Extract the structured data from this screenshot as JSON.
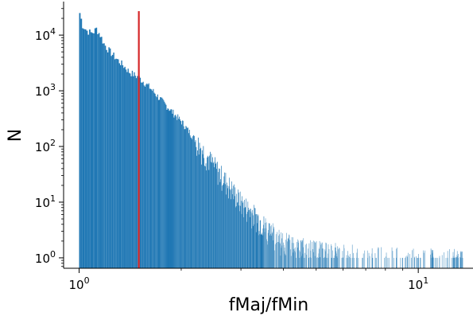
{
  "chart_data": {
    "type": "bar",
    "title": "",
    "xlabel": "fMaj/fMin",
    "ylabel": "N",
    "xscale": "log",
    "yscale": "log",
    "xlim": [
      0.9,
      14.5
    ],
    "ylim": [
      0.65,
      40000
    ],
    "x_ticks": [
      {
        "value": 1,
        "base": "10",
        "exp": "0"
      },
      {
        "value": 10,
        "base": "10",
        "exp": "1"
      }
    ],
    "y_ticks": [
      {
        "value": 1,
        "base": "10",
        "exp": "0"
      },
      {
        "value": 10,
        "base": "10",
        "exp": "1"
      },
      {
        "value": 100,
        "base": "10",
        "exp": "2"
      },
      {
        "value": 1000,
        "base": "10",
        "exp": "3"
      },
      {
        "value": 10000,
        "base": "10",
        "exp": "4"
      }
    ],
    "grid": false,
    "bar_color": "#1f77b4",
    "vline": {
      "x": 1.5,
      "color": "#d62728"
    },
    "series": [
      {
        "bin_start": 1.0,
        "bin_width": 0.01,
        "x": [
          1.0,
          1.02,
          1.05,
          1.08,
          1.1,
          1.12,
          1.15,
          1.18,
          1.2,
          1.25,
          1.3,
          1.35,
          1.4,
          1.5,
          1.6,
          1.7,
          1.8,
          2.0,
          2.2,
          2.5,
          2.8,
          3.0,
          3.2,
          3.5,
          3.8,
          4.0,
          4.5,
          5.0,
          5.5,
          6.0,
          7.0,
          8.0,
          9.0,
          10.0,
          11.0,
          12.0,
          13.0,
          13.5
        ],
        "values": [
          25000,
          15000,
          12000,
          11000,
          11500,
          13000,
          10000,
          7000,
          6000,
          4500,
          3500,
          2800,
          2200,
          1700,
          1200,
          800,
          550,
          280,
          130,
          45,
          18,
          10,
          7,
          4,
          2.5,
          2,
          1.6,
          1.4,
          1.3,
          1.2,
          1.1,
          1.05,
          1.02,
          1.0,
          1.0,
          1.0,
          1.0,
          0.9
        ]
      }
    ]
  }
}
